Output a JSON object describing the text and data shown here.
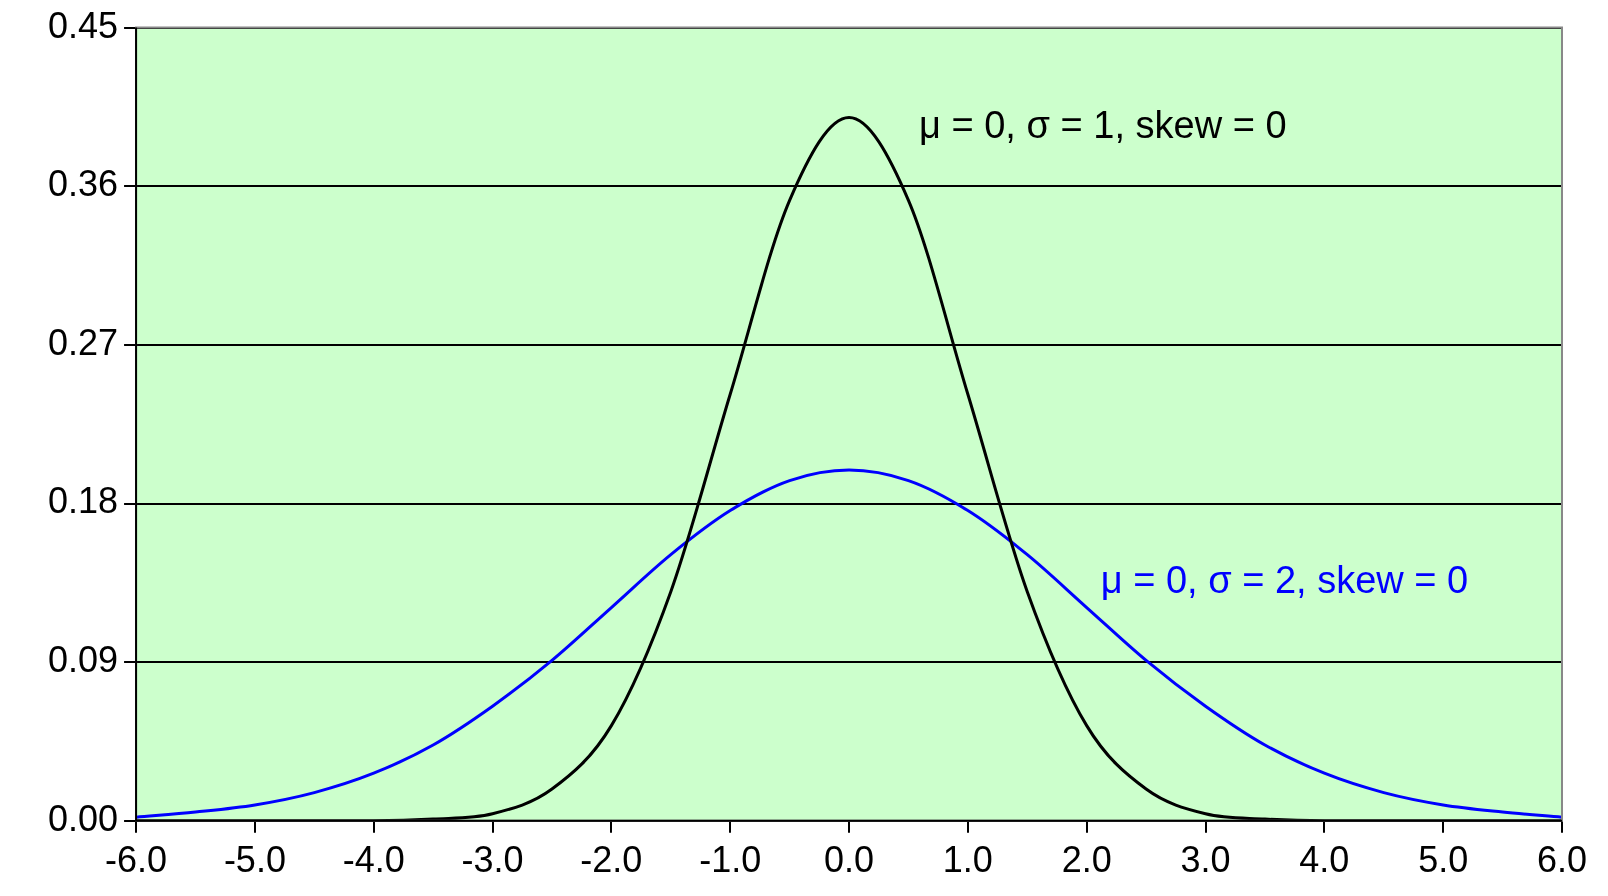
{
  "chart_data": {
    "type": "line",
    "x": [
      -6,
      -5.5,
      -5,
      -4.5,
      -4,
      -3.5,
      -3,
      -2.5,
      -2,
      -1.5,
      -1,
      -0.5,
      0,
      0.5,
      1,
      1.5,
      2,
      2.5,
      3,
      3.5,
      4,
      4.5,
      5,
      5.5,
      6
    ],
    "series": [
      {
        "name": "μ = 0, σ = 1, skew = 0",
        "color": "#000000",
        "values": [
          0,
          0,
          0,
          0,
          0,
          0.001,
          0.004,
          0.018,
          0.054,
          0.13,
          0.242,
          0.352,
          0.399,
          0.352,
          0.242,
          0.13,
          0.054,
          0.018,
          0.004,
          0.001,
          0,
          0,
          0,
          0,
          0
        ]
      },
      {
        "name": "μ = 0, σ = 2, skew = 0",
        "color": "#0000ff",
        "values": [
          0.002,
          0.005,
          0.009,
          0.016,
          0.027,
          0.043,
          0.065,
          0.091,
          0.121,
          0.151,
          0.176,
          0.193,
          0.199,
          0.193,
          0.176,
          0.151,
          0.121,
          0.091,
          0.065,
          0.043,
          0.027,
          0.016,
          0.009,
          0.005,
          0.002
        ]
      }
    ],
    "xlim": [
      -6,
      6
    ],
    "xticks": [
      {
        "value": -6,
        "label": "-6.0"
      },
      {
        "value": -5,
        "label": "-5.0"
      },
      {
        "value": -4,
        "label": "-4.0"
      },
      {
        "value": -3,
        "label": "-3.0"
      },
      {
        "value": -2,
        "label": "-2.0"
      },
      {
        "value": -1,
        "label": "-1.0"
      },
      {
        "value": 0,
        "label": "0.0"
      },
      {
        "value": 1,
        "label": "1.0"
      },
      {
        "value": 2,
        "label": "2.0"
      },
      {
        "value": 3,
        "label": "3.0"
      },
      {
        "value": 4,
        "label": "4.0"
      },
      {
        "value": 5,
        "label": "5.0"
      },
      {
        "value": 6,
        "label": "6.0"
      }
    ],
    "ylim": [
      0,
      0.45
    ],
    "yticks": [
      {
        "value": 0,
        "label": "0.00"
      },
      {
        "value": 0.09,
        "label": "0.09"
      },
      {
        "value": 0.18,
        "label": "0.18"
      },
      {
        "value": 0.27,
        "label": "0.27"
      },
      {
        "value": 0.36,
        "label": "0.36"
      },
      {
        "value": 0.45,
        "label": "0.45"
      }
    ],
    "grid": "y",
    "legend": false,
    "marker": "none",
    "line_style": "solid"
  }
}
